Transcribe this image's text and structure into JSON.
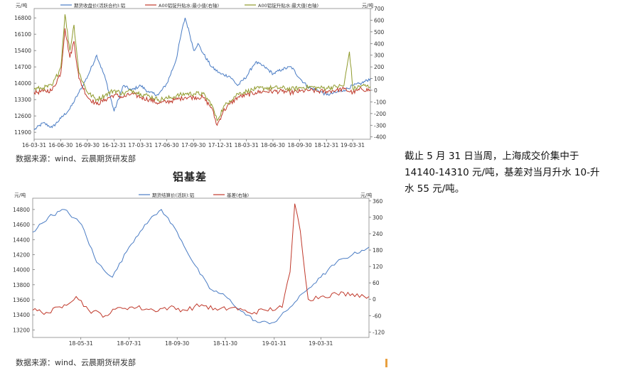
{
  "chart_data": [
    {
      "type": "line",
      "left_unit": "元/吨",
      "right_unit": "元/吨",
      "legend": [
        "期货收盘价(活跃合约):铝",
        "A00铝锭升贴水:最小值(右轴)",
        "A00铝锭升贴水:最大值(右轴)"
      ],
      "colors": [
        "#4a7cc4",
        "#c0392b",
        "#8f9a2c"
      ],
      "y_left_ticks": [
        "11900",
        "12600",
        "13300",
        "14000",
        "14700",
        "15400",
        "16100",
        "16800"
      ],
      "y_left_lim": [
        11600,
        17200
      ],
      "y_right_ticks": [
        "-400",
        "-300",
        "-200",
        "-100",
        "0",
        "100",
        "200",
        "300",
        "400",
        "500",
        "600",
        "700"
      ],
      "y_right_lim": [
        -420,
        700
      ],
      "x_ticks": [
        "16-03-31",
        "16-06-30",
        "16-09-30",
        "16-12-31",
        "17-03-31",
        "17-06-30",
        "17-09-30",
        "17-12-31",
        "18-03-31",
        "18-06-30",
        "18-09-30",
        "18-12-31",
        "19-03-31"
      ],
      "x_range": [
        "2016-03-31",
        "2019-05-31"
      ],
      "series": [
        {
          "name": "期货收盘价(活跃合约):铝",
          "axis": "left",
          "x": [
            "2016-03-31",
            "2016-05-01",
            "2016-06-01",
            "2016-07-01",
            "2016-08-01",
            "2016-09-01",
            "2016-10-01",
            "2016-11-01",
            "2016-12-01",
            "2016-12-31",
            "2017-02-01",
            "2017-03-01",
            "2017-04-01",
            "2017-05-01",
            "2017-06-01",
            "2017-07-01",
            "2017-08-01",
            "2017-08-20",
            "2017-09-01",
            "2017-09-15",
            "2017-10-01",
            "2017-10-15",
            "2017-11-01",
            "2017-12-01",
            "2018-01-01",
            "2018-02-01",
            "2018-03-01",
            "2018-04-01",
            "2018-04-20",
            "2018-05-01",
            "2018-06-01",
            "2018-07-01",
            "2018-08-01",
            "2018-09-01",
            "2018-10-01",
            "2018-11-01",
            "2018-12-01",
            "2019-01-01",
            "2019-02-01",
            "2019-03-01",
            "2019-04-01",
            "2019-05-01",
            "2019-05-31"
          ],
          "values": [
            12000,
            12300,
            12100,
            12500,
            12900,
            13600,
            14300,
            15200,
            14200,
            12800,
            13900,
            13700,
            13900,
            13600,
            13500,
            14000,
            15000,
            16200,
            16800,
            16200,
            15400,
            15700,
            15300,
            14700,
            14400,
            14300,
            13900,
            14300,
            14700,
            14900,
            14700,
            14400,
            14600,
            14700,
            14200,
            13800,
            13700,
            13500,
            13600,
            13700,
            13900,
            14000,
            14200
          ]
        },
        {
          "name": "A00铝锭升贴水:最小值(右轴)",
          "axis": "right",
          "x": [
            "2016-03-31",
            "2016-05-01",
            "2016-06-01",
            "2016-07-01",
            "2016-07-15",
            "2016-08-01",
            "2016-08-15",
            "2016-09-01",
            "2016-10-01",
            "2016-11-01",
            "2016-12-01",
            "2016-12-31",
            "2017-02-01",
            "2017-03-01",
            "2017-04-01",
            "2017-05-01",
            "2017-06-01",
            "2017-07-01",
            "2017-08-01",
            "2017-09-01",
            "2017-10-01",
            "2017-11-01",
            "2017-12-01",
            "2017-12-20",
            "2018-01-10",
            "2018-02-01",
            "2018-03-01",
            "2018-04-01",
            "2018-05-01",
            "2018-06-01",
            "2018-07-01",
            "2018-08-01",
            "2018-09-01",
            "2018-10-01",
            "2018-11-01",
            "2018-12-01",
            "2019-01-01",
            "2019-02-01",
            "2019-03-01",
            "2019-04-01",
            "2019-05-01",
            "2019-05-31"
          ],
          "values": [
            -20,
            -10,
            0,
            150,
            530,
            280,
            420,
            100,
            -60,
            -120,
            -80,
            -40,
            -60,
            -30,
            -60,
            -80,
            -110,
            -100,
            -80,
            -60,
            -60,
            -60,
            -150,
            -300,
            -180,
            -120,
            -60,
            -40,
            -20,
            -10,
            -10,
            -10,
            -20,
            -10,
            0,
            -10,
            -10,
            0,
            10,
            -20,
            10,
            0
          ]
        },
        {
          "name": "A00铝锭升贴水:最大值(右轴)",
          "axis": "right",
          "x": [
            "2016-03-31",
            "2016-05-01",
            "2016-06-01",
            "2016-07-01",
            "2016-07-15",
            "2016-08-01",
            "2016-08-15",
            "2016-09-01",
            "2016-10-01",
            "2016-11-01",
            "2016-12-01",
            "2016-12-31",
            "2017-02-01",
            "2017-03-01",
            "2017-04-01",
            "2017-05-01",
            "2017-06-01",
            "2017-07-01",
            "2017-08-01",
            "2017-09-01",
            "2017-10-01",
            "2017-11-01",
            "2017-12-01",
            "2017-12-20",
            "2018-01-10",
            "2018-02-01",
            "2018-03-01",
            "2018-04-01",
            "2018-05-01",
            "2018-06-01",
            "2018-07-01",
            "2018-08-01",
            "2018-09-01",
            "2018-10-01",
            "2018-11-01",
            "2018-12-01",
            "2019-01-01",
            "2019-02-01",
            "2019-03-01",
            "2019-03-20",
            "2019-04-01",
            "2019-05-01",
            "2019-05-31"
          ],
          "values": [
            10,
            20,
            40,
            200,
            650,
            340,
            560,
            150,
            -20,
            -80,
            -40,
            0,
            -30,
            0,
            -30,
            -50,
            -80,
            -70,
            -50,
            -30,
            -30,
            -30,
            -120,
            -260,
            -150,
            -90,
            -30,
            -10,
            10,
            20,
            20,
            20,
            10,
            20,
            30,
            20,
            20,
            30,
            40,
            330,
            10,
            40,
            30
          ]
        }
      ]
    },
    {
      "type": "line",
      "title": "铝基差",
      "left_unit": "元/吨",
      "right_unit": "元/吨",
      "legend": [
        "期货结算价(活跃):铝",
        "基差(右轴)"
      ],
      "colors": [
        "#4a7cc4",
        "#c0392b"
      ],
      "y_left_ticks": [
        "13200",
        "13400",
        "13600",
        "13800",
        "14000",
        "14200",
        "14400",
        "14600",
        "14800"
      ],
      "y_left_lim": [
        13100,
        14950
      ],
      "y_right_ticks": [
        "-120",
        "-60",
        "0",
        "60",
        "120",
        "180",
        "240",
        "300",
        "360"
      ],
      "y_right_lim": [
        -140,
        370
      ],
      "x_ticks": [
        "18-05-31",
        "18-07-31",
        "18-09-30",
        "18-11-30",
        "19-01-31",
        "19-03-31"
      ],
      "x_range": [
        "2018-03-31",
        "2019-05-31"
      ],
      "series": [
        {
          "name": "期货结算价(活跃):铝",
          "axis": "left",
          "x": [
            "2018-03-31",
            "2018-04-20",
            "2018-05-10",
            "2018-06-01",
            "2018-06-20",
            "2018-07-10",
            "2018-07-31",
            "2018-08-20",
            "2018-09-10",
            "2018-09-30",
            "2018-10-20",
            "2018-11-10",
            "2018-11-30",
            "2018-12-20",
            "2019-01-10",
            "2019-01-31",
            "2019-02-20",
            "2019-03-10",
            "2019-03-31",
            "2019-04-20",
            "2019-05-10",
            "2019-05-31"
          ],
          "values": [
            14500,
            14700,
            14800,
            14600,
            14100,
            13900,
            14300,
            14600,
            14800,
            14500,
            14100,
            13750,
            13650,
            13450,
            13300,
            13300,
            13500,
            13700,
            13900,
            14100,
            14200,
            14300
          ]
        },
        {
          "name": "基差(右轴)",
          "axis": "right",
          "x": [
            "2018-03-31",
            "2018-04-20",
            "2018-05-10",
            "2018-05-25",
            "2018-06-10",
            "2018-07-01",
            "2018-07-20",
            "2018-08-10",
            "2018-08-31",
            "2018-09-20",
            "2018-10-10",
            "2018-10-31",
            "2018-11-20",
            "2018-12-10",
            "2018-12-31",
            "2019-01-20",
            "2019-02-10",
            "2019-02-20",
            "2019-02-26",
            "2019-03-05",
            "2019-03-15",
            "2019-03-31",
            "2019-04-20",
            "2019-05-10",
            "2019-05-31"
          ],
          "values": [
            -40,
            -50,
            -20,
            10,
            -40,
            -60,
            -30,
            -30,
            -40,
            -30,
            -40,
            -20,
            -40,
            -30,
            -50,
            -40,
            -30,
            100,
            350,
            250,
            0,
            10,
            20,
            20,
            10
          ]
        }
      ]
    }
  ],
  "sources": [
    "数据来源：wind、云晨期货研发部",
    "数据来源：wind、云晨期货研发部"
  ],
  "side_text": [
    "截止 5 月 31 日当周，上海成交价集中于",
    "14140-14310 元/吨，基差对当月升水 10-升",
    "水 55 元/吨。"
  ]
}
